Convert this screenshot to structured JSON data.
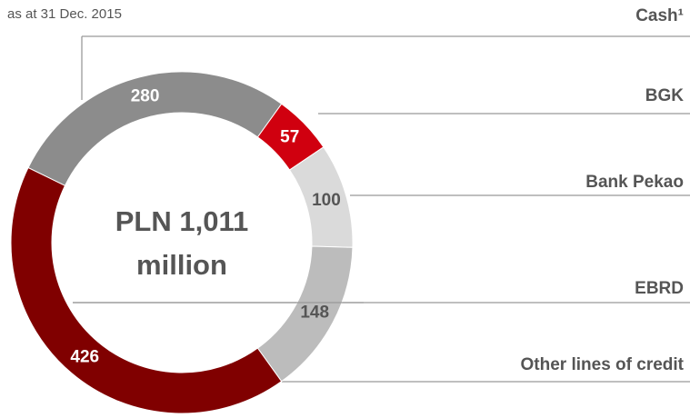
{
  "chart_data": {
    "type": "donut",
    "subtitle": "as at 31 Dec. 2015",
    "center_label": [
      "PLN 1,011",
      "million"
    ],
    "categories": [
      "Cash¹",
      "BGK",
      "Bank Pekao",
      "EBRD",
      "Other lines of credit"
    ],
    "values": [
      280,
      57,
      100,
      148,
      426
    ],
    "colors": [
      "#8c8c8c",
      "#d0000f",
      "#dadada",
      "#bcbcbc",
      "#800000"
    ]
  }
}
